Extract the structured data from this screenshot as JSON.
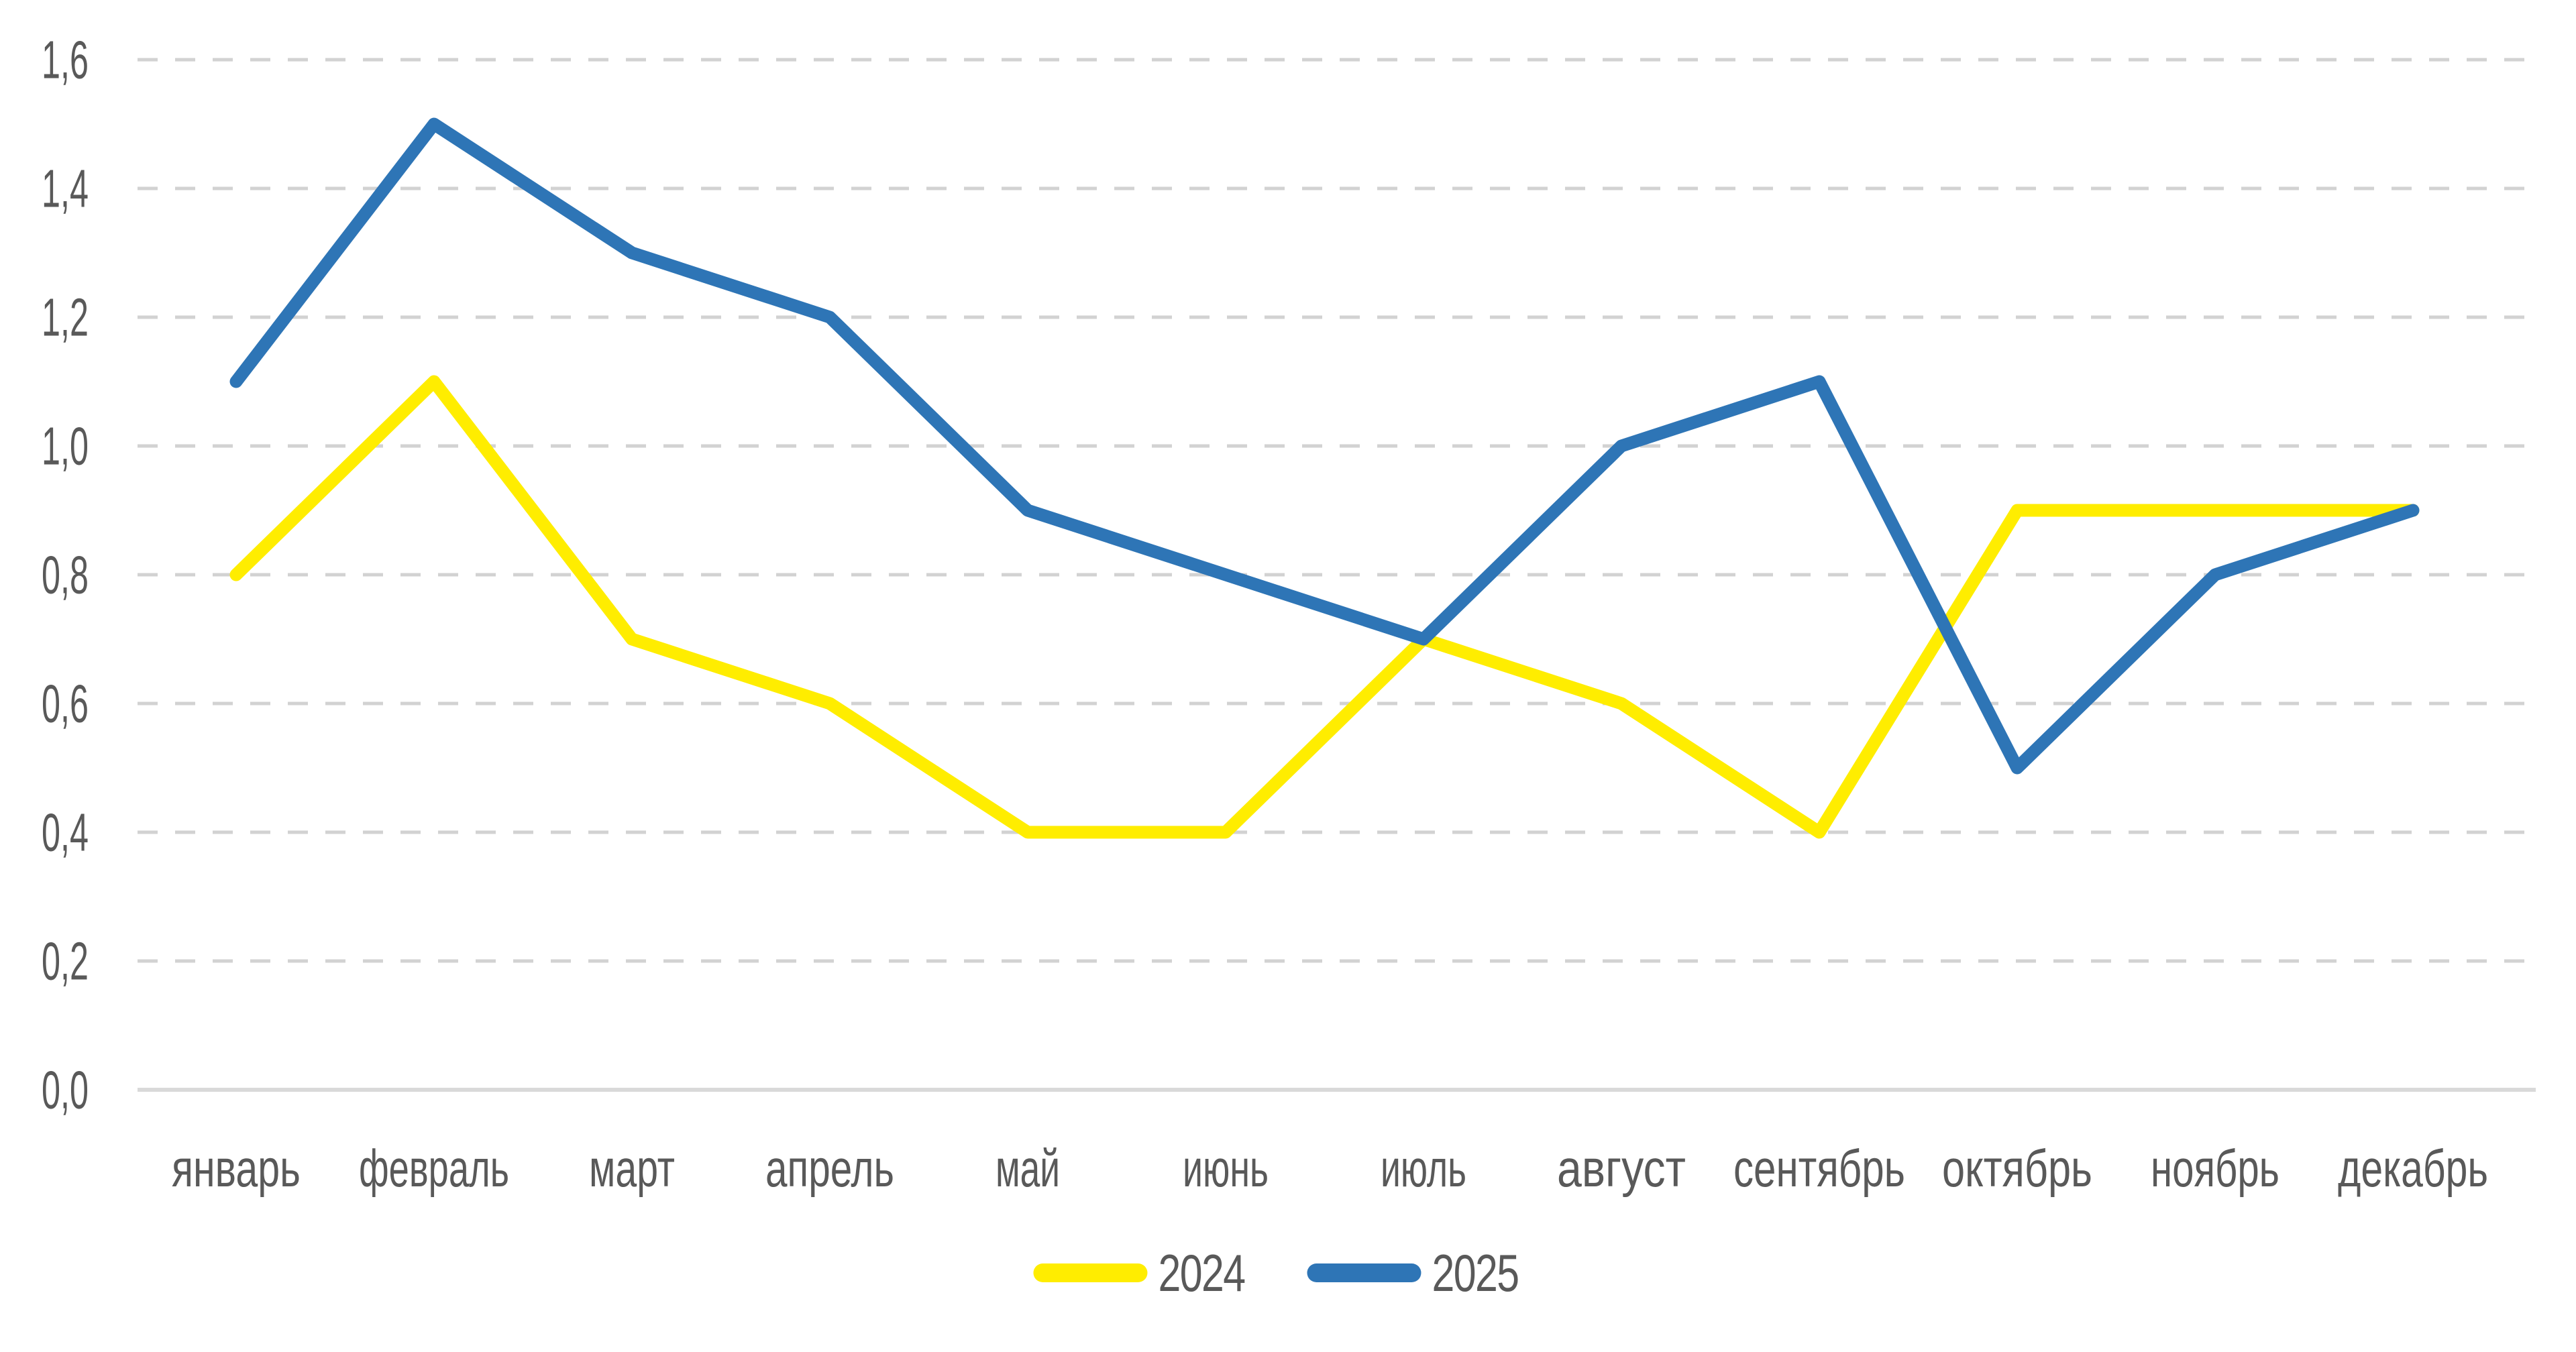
{
  "chart_data": {
    "type": "line",
    "title": "",
    "xlabel": "",
    "ylabel": "",
    "categories": [
      "январь",
      "февраль",
      "март",
      "апрель",
      "май",
      "июнь",
      "июль",
      "август",
      "сентябрь",
      "октябрь",
      "ноябрь",
      "декабрь"
    ],
    "series": [
      {
        "name": "2024",
        "color": "#FFED00",
        "values": [
          0.8,
          1.1,
          0.7,
          0.6,
          0.4,
          0.4,
          0.7,
          0.6,
          0.4,
          0.9,
          0.9,
          0.9
        ]
      },
      {
        "name": "2025",
        "color": "#2E75B6",
        "values": [
          1.1,
          1.5,
          1.3,
          1.2,
          0.9,
          0.8,
          0.7,
          1.0,
          1.1,
          0.5,
          0.8,
          0.9
        ]
      }
    ],
    "y_axis": {
      "min": 0,
      "max": 1.6,
      "step": 0.2,
      "decimal_separator": ",",
      "tick_labels": [
        "0,0",
        "0,2",
        "0,4",
        "0,6",
        "0,8",
        "1,0",
        "1,2",
        "1,4",
        "1,6"
      ]
    },
    "grid": {
      "visible": true,
      "style": "dashed",
      "color": "#D2D2D2"
    },
    "axis_line_color": "#D9D9D9",
    "label_color": "#595959",
    "background": "#FFFFFF",
    "legend_position": "bottom"
  }
}
